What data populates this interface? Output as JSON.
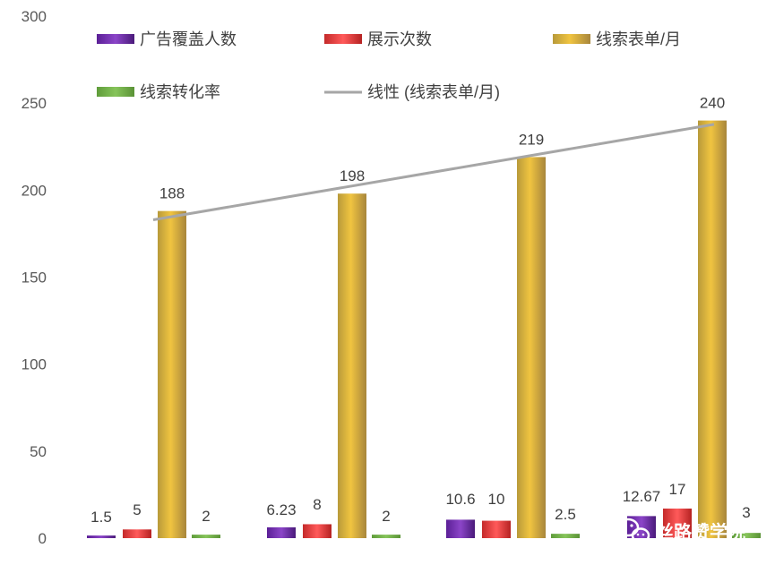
{
  "chart_data": {
    "type": "bar",
    "categories": [
      "",
      "",
      "",
      ""
    ],
    "ylim": [
      0,
      300
    ],
    "yticks": [
      0,
      50,
      100,
      150,
      200,
      250,
      300
    ],
    "grid": false,
    "legend_position": "top",
    "series": [
      {
        "name": "广告覆盖人数",
        "values": [
          1.5,
          6.23,
          10.6,
          12.67
        ],
        "labels": [
          "1.5",
          "6.23",
          "10.6",
          "12.67"
        ],
        "color": "#7030a0"
      },
      {
        "name": "展示次数",
        "values": [
          5,
          8,
          10,
          17
        ],
        "labels": [
          "5",
          "8",
          "10",
          "17"
        ],
        "color": "#e03c3c"
      },
      {
        "name": "线索表单/月",
        "values": [
          188,
          198,
          219,
          240
        ],
        "labels": [
          "188",
          "198",
          "219",
          "240"
        ],
        "color": "#e6b935"
      },
      {
        "name": "线索转化率",
        "values": [
          2,
          2,
          2.5,
          3
        ],
        "labels": [
          "2",
          "2",
          "2.5",
          "3"
        ],
        "color": "#70ad47"
      }
    ],
    "trendline": {
      "name": "线性 (线索表单/月)",
      "of_series": "线索表单/月",
      "color": "#a6a6a6"
    }
  },
  "watermark": {
    "text": "丝路赞学院",
    "icon": "wechat-icon"
  }
}
